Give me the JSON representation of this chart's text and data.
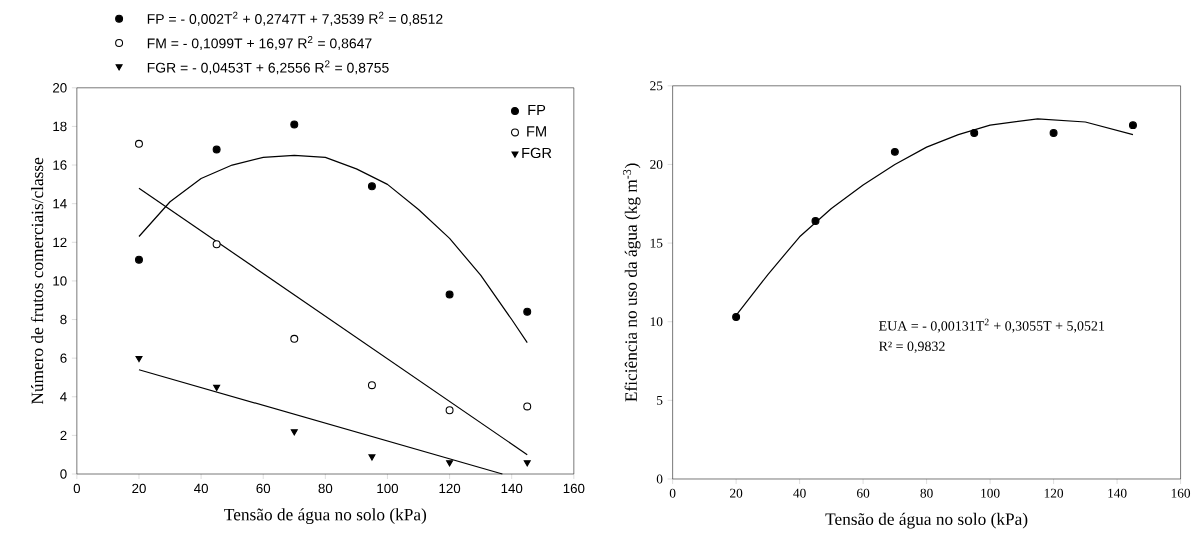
{
  "chart_data": [
    {
      "type": "scatter",
      "xlabel": "Tensão de água no solo (kPa)",
      "ylabel": "Número de frutos comerciais/classe",
      "x": [
        20,
        45,
        70,
        95,
        120,
        145
      ],
      "series": [
        {
          "name": "FP",
          "marker": "circle",
          "color": "#000000",
          "values": [
            11.1,
            16.8,
            18.1,
            14.9,
            9.3,
            8.4
          ]
        },
        {
          "name": "FM",
          "marker": "circle",
          "color": "#ffffff",
          "values": [
            17.1,
            11.9,
            7.0,
            4.6,
            3.3,
            3.5
          ]
        },
        {
          "name": "FGR",
          "marker": "triangle",
          "color": "#000000",
          "values": [
            6.0,
            4.5,
            2.2,
            0.9,
            0.6,
            0.6
          ]
        },
        {
          "type": "line",
          "marker": "none",
          "color": "#000000",
          "x": [
            20,
            30,
            40,
            50,
            60,
            70,
            80,
            90,
            100,
            110,
            120,
            130,
            140,
            145
          ],
          "values": [
            12.3,
            14.1,
            15.3,
            16.0,
            16.4,
            16.5,
            16.4,
            15.8,
            15.0,
            13.7,
            12.2,
            10.3,
            8.0,
            6.8
          ]
        },
        {
          "type": "line",
          "marker": "none",
          "color": "#000000",
          "x": [
            20,
            145
          ],
          "values": [
            14.8,
            1.0
          ]
        },
        {
          "type": "line",
          "marker": "none",
          "color": "#000000",
          "x": [
            20,
            137
          ],
          "values": [
            5.4,
            0
          ]
        }
      ],
      "xlim": [
        0,
        160
      ],
      "xticks": [
        0,
        20,
        40,
        60,
        80,
        100,
        120,
        140,
        160
      ],
      "ylim": [
        0,
        20
      ],
      "yticks": [
        0,
        2,
        4,
        6,
        8,
        10,
        12,
        14,
        16,
        18,
        20
      ],
      "legend": "top right",
      "line_style": "solid",
      "annotations": [
        "FP = - 0,002T$^{2}$ + 0,2747T + 7,3539   R$^{2}$ = 0,8512",
        "FM = - 0,1099T + 16,97        R$^{2}$ = 0,8647",
        "FGR = - 0,0453T + 6,2556   R$^{2}$ = 0,8755"
      ]
    },
    {
      "type": "scatter",
      "xlabel": "Tensão de água no solo (kPa)",
      "ylabel": "Eficiência no uso da água (kg m$^{-3}$)",
      "x": [
        20,
        45,
        70,
        95,
        120,
        145
      ],
      "series": [
        {
          "marker": "circle",
          "color": "#000000",
          "values": [
            10.3,
            16.4,
            20.8,
            22.0,
            22.0,
            22.5
          ]
        },
        {
          "type": "line",
          "marker": "none",
          "color": "#000000",
          "x": [
            20,
            30,
            40,
            50,
            60,
            70,
            80,
            90,
            100,
            115,
            130,
            145
          ],
          "values": [
            10.4,
            13.0,
            15.4,
            17.2,
            18.7,
            20.0,
            21.1,
            21.9,
            22.5,
            22.9,
            22.7,
            21.9
          ]
        }
      ],
      "xlim": [
        0,
        160
      ],
      "xticks": [
        0,
        20,
        40,
        60,
        80,
        100,
        120,
        140,
        160
      ],
      "ylim": [
        0,
        25
      ],
      "yticks": [
        0,
        5,
        10,
        15,
        20,
        25
      ],
      "line_style": "solid",
      "annotations": [
        "EUA = - 0,00131T$^{2}$ + 0,3055T + 5,0521",
        "R² = 0,9832"
      ]
    }
  ]
}
